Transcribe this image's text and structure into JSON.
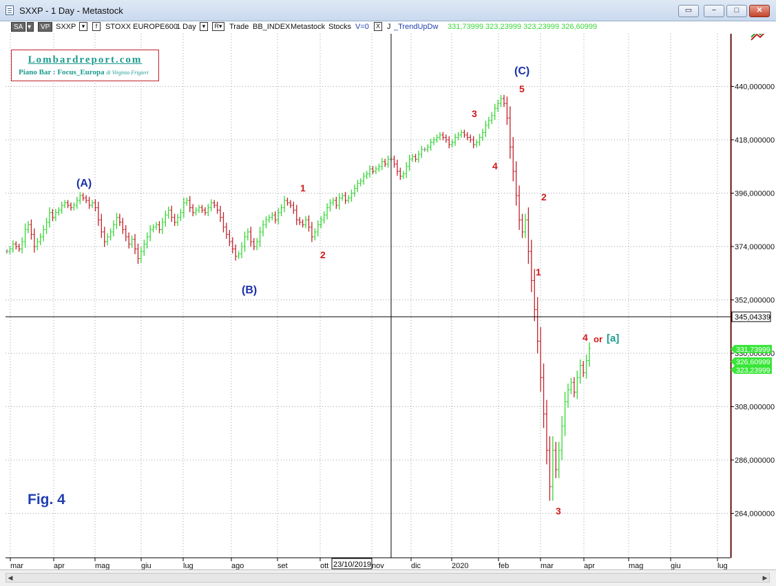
{
  "window": {
    "title": "SXXP - 1 Day - Metastock"
  },
  "window_buttons": {
    "restore_icon": "restore-icon",
    "minimize": "−",
    "maximize": "□",
    "close": "✕"
  },
  "toolbar": {
    "sa": "SA",
    "vp": "VP",
    "symbol": "SXXP",
    "dropdown_1": "▾",
    "dropdown_2": "▾",
    "box_f": "f",
    "name": "STOXX EUROPE600",
    "period": "1 Day",
    "r_box": "R▾",
    "trade": "Trade",
    "source": "BB_INDEX",
    "vendor": "Metastock",
    "market": "Stocks",
    "v": "V=0",
    "x_box": "X",
    "j": "J",
    "indicator": "_TrendUpDw",
    "indicator_values": "331,73999  323,23999  323,23999  326,60999"
  },
  "logo": {
    "title": "Lombardreport.com",
    "subtitle": "Piano Bar : Focus_Europa",
    "author": "di Virginio Frigieri"
  },
  "figure_label": "Fig.  4",
  "wave_labels": {
    "A": "(A)",
    "B": "(B)",
    "C": "(C)",
    "w1a": "1",
    "w2a": "2",
    "w3b": "3",
    "w4b": "4",
    "w5": "5",
    "w2c": "2",
    "w1c": "1",
    "w3c": "3",
    "w4c": "4",
    "or": "or",
    "alt": "[a]"
  },
  "colors": {
    "up": "#33d633",
    "down": "#c0202a",
    "neutral": "#8a8a8a",
    "grid": "#9aa0a8",
    "crosshair": "#000000",
    "axis_line": "#c02020",
    "price_tag": "#39e639"
  },
  "chart_data": {
    "type": "bar",
    "title": "SXXP - 1 Day - Metastock",
    "ylim": [
      252,
      455
    ],
    "y_ticks": [
      "440,000000",
      "418,000000",
      "396,000000",
      "374,000000",
      "352,000000",
      "330,000000",
      "308,000000",
      "286,000000",
      "264,000000"
    ],
    "x_month_labels": [
      "mar",
      "apr",
      "mag",
      "giu",
      "lug",
      "ago",
      "set",
      "ott",
      "nov",
      "dic",
      "2020",
      "feb",
      "mar",
      "apr",
      "mag",
      "giu",
      "lug"
    ],
    "crosshair": {
      "price": "345,04339",
      "date": "23/10/2019"
    },
    "price_tags": [
      "331,73999",
      "326,60999",
      "323,23999"
    ],
    "series": [
      {
        "name": "SXXP",
        "values": [
          372,
          373,
          375,
          374,
          373,
          376,
          381,
          383,
          379,
          374,
          376,
          378,
          381,
          384,
          388,
          386,
          388,
          389,
          391,
          392,
          391,
          390,
          391,
          393,
          395,
          394,
          393,
          391,
          392,
          390,
          385,
          380,
          376,
          378,
          380,
          383,
          386,
          384,
          381,
          378,
          375,
          377,
          373,
          369,
          372,
          375,
          378,
          381,
          382,
          383,
          381,
          384,
          387,
          389,
          386,
          384,
          386,
          388,
          392,
          393,
          390,
          388,
          389,
          390,
          389,
          388,
          390,
          392,
          391,
          389,
          386,
          382,
          379,
          376,
          373,
          370,
          371,
          374,
          378,
          380,
          376,
          374,
          376,
          380,
          383,
          385,
          386,
          387,
          385,
          388,
          390,
          393,
          392,
          391,
          389,
          385,
          384,
          383,
          385,
          382,
          378,
          380,
          383,
          385,
          387,
          390,
          392,
          393,
          391,
          394,
          395,
          393,
          394,
          396,
          398,
          400,
          401,
          403,
          404,
          406,
          405,
          406,
          407,
          409,
          408,
          410,
          410,
          408,
          405,
          403,
          404,
          407,
          410,
          411,
          410,
          412,
          414,
          414,
          415,
          417,
          418,
          419,
          420,
          419,
          418,
          416,
          417,
          419,
          420,
          421,
          420,
          419,
          418,
          416,
          417,
          419,
          421,
          424,
          426,
          428,
          431,
          433,
          435,
          433,
          427,
          415,
          405,
          395,
          385,
          380,
          385,
          372,
          360,
          348,
          335,
          320,
          305,
          290,
          275,
          290,
          282,
          290,
          300,
          310,
          315,
          318,
          314,
          320,
          325,
          322,
          327,
          332
        ]
      }
    ]
  }
}
